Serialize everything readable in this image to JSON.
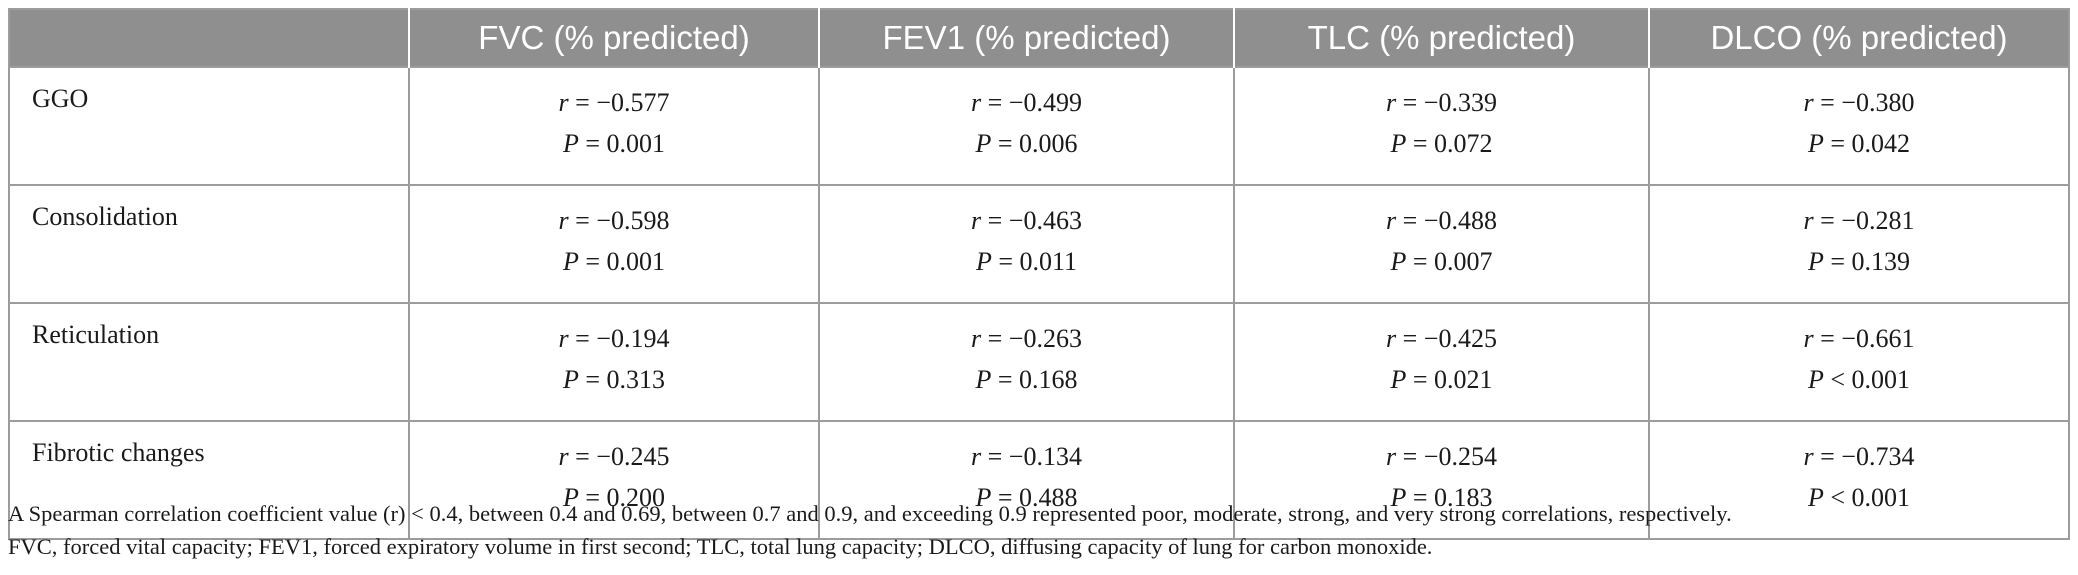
{
  "table": {
    "corner": "",
    "headers": [
      "FVC (% predicted)",
      "FEV1 (% predicted)",
      "TLC (% predicted)",
      "DLCO (% predicted)"
    ],
    "r_symbol": "r",
    "p_symbol": "P",
    "rows": [
      {
        "label": "GGO",
        "cells": [
          {
            "r": " = −0.577",
            "p": " = 0.001"
          },
          {
            "r": " = −0.499",
            "p": " = 0.006"
          },
          {
            "r": " = −0.339",
            "p": " = 0.072"
          },
          {
            "r": " = −0.380",
            "p": " = 0.042"
          }
        ]
      },
      {
        "label": "Consolidation",
        "cells": [
          {
            "r": " = −0.598",
            "p": " = 0.001"
          },
          {
            "r": " = −0.463",
            "p": " = 0.011"
          },
          {
            "r": " = −0.488",
            "p": " = 0.007"
          },
          {
            "r": " = −0.281",
            "p": " = 0.139"
          }
        ]
      },
      {
        "label": "Reticulation",
        "cells": [
          {
            "r": " = −0.194",
            "p": " = 0.313"
          },
          {
            "r": " = −0.263",
            "p": " = 0.168"
          },
          {
            "r": " = −0.425",
            "p": " = 0.021"
          },
          {
            "r": " = −0.661",
            "p": " < 0.001"
          }
        ]
      },
      {
        "label": "Fibrotic changes",
        "cells": [
          {
            "r": " = −0.245",
            "p": " = 0.200"
          },
          {
            "r": " = −0.134",
            "p": " = 0.488"
          },
          {
            "r": " = −0.254",
            "p": " = 0.183"
          },
          {
            "r": " = −0.734",
            "p": " < 0.001"
          }
        ]
      }
    ]
  },
  "footnotes": {
    "line1": "A Spearman correlation coefficient value (r) < 0.4, between 0.4 and 0.69, between 0.7 and 0.9, and exceeding 0.9 represented poor, moderate, strong, and very strong correlations, respectively.",
    "line2": "FVC, forced vital capacity; FEV1, forced expiratory volume in first second; TLC, total lung capacity; DLCO, diffusing capacity of lung for carbon monoxide."
  },
  "colors": {
    "header_bg": "#8f8f8f",
    "header_text": "#ffffff",
    "border": "#9c9c9c"
  }
}
